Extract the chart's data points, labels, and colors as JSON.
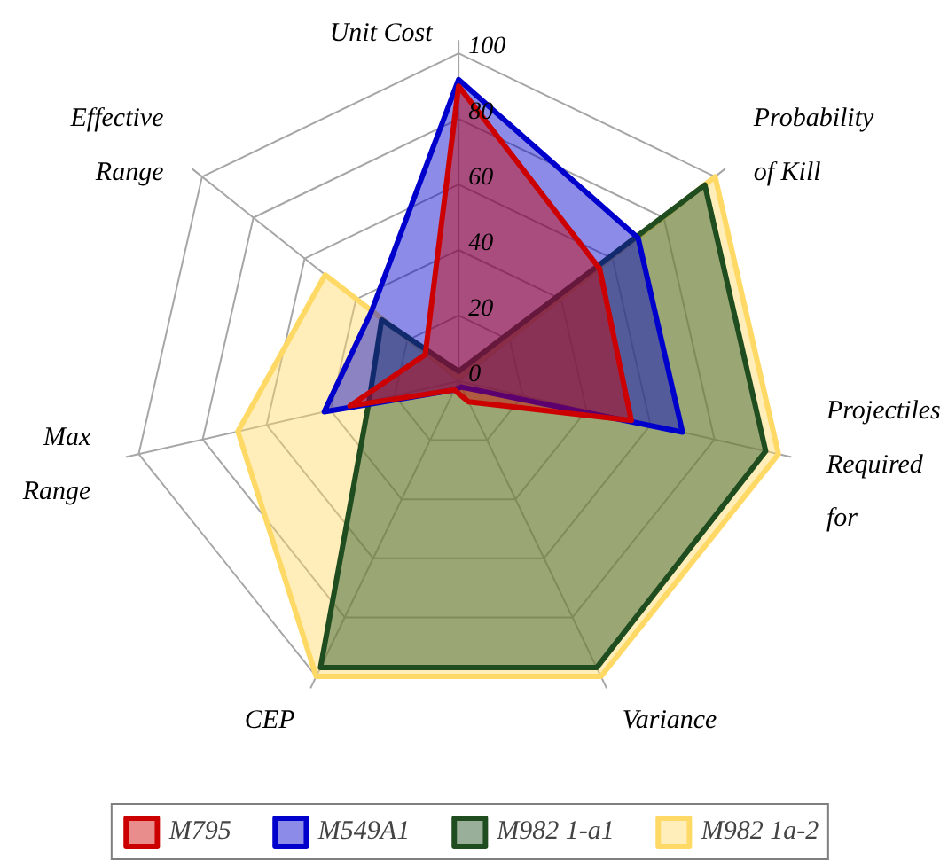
{
  "chart_data": {
    "type": "radar",
    "categories": [
      "Unit Cost",
      "Probability\nof Kill",
      "Projectiles\nRequired\nfor",
      "Variance",
      "CEP",
      "Max\nRange",
      "Effective\nRange"
    ],
    "ylim": [
      0,
      100
    ],
    "yticks": [
      0,
      20,
      40,
      60,
      80,
      100
    ],
    "grid": true,
    "legend": "bottom",
    "marker": "none",
    "line_style": "solid",
    "series": [
      {
        "name": "M795",
        "color": "#cc0000",
        "values": [
          90,
          55,
          54,
          7,
          3,
          34,
          13
        ]
      },
      {
        "name": "M549A1",
        "color": "#0000cc",
        "values": [
          92,
          70,
          70,
          2,
          3,
          42,
          34
        ]
      },
      {
        "name": "M982 1-a1",
        "color": "#1f4d1f",
        "values": [
          3,
          96,
          96,
          97,
          97,
          28,
          30
        ]
      },
      {
        "name": "M982 1a-2",
        "color": "#ffd966",
        "values": [
          1,
          100,
          100,
          100,
          100,
          69,
          52
        ]
      }
    ]
  }
}
